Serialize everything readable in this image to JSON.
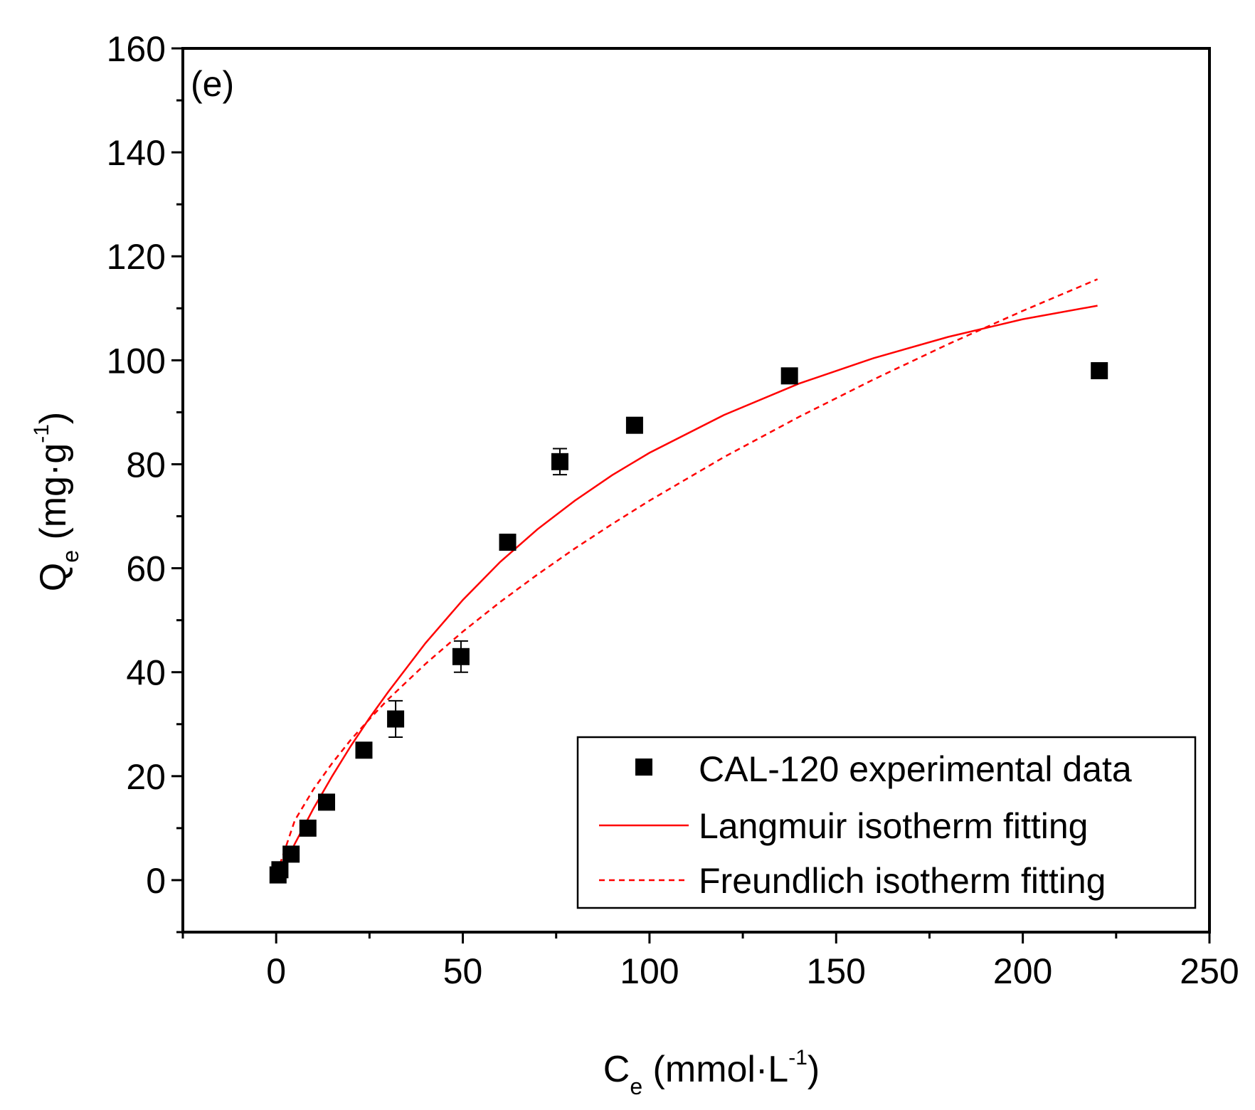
{
  "chart_data": {
    "type": "scatter",
    "panel_label": "(e)",
    "x_axis": {
      "label_main": "C",
      "label_sub": "e",
      "label_unit_pre": " (mmol·L",
      "label_sup": "-1",
      "label_unit_post": ")",
      "range": [
        -25,
        250
      ],
      "ticks": [
        0,
        50,
        100,
        150,
        200,
        250
      ],
      "tick_labels": [
        "0",
        "50",
        "100",
        "150",
        "200",
        "250"
      ],
      "minor_step": 25
    },
    "y_axis": {
      "label_main": "Q",
      "label_sub": "e",
      "label_unit_pre": " (mg·g",
      "label_sup": "-1",
      "label_unit_post": ")",
      "range": [
        -10,
        160
      ],
      "ticks": [
        0,
        20,
        40,
        60,
        80,
        100,
        120,
        140,
        160
      ],
      "tick_labels": [
        "0",
        "20",
        "40",
        "60",
        "80",
        "100",
        "120",
        "140",
        "160"
      ],
      "minor_step": 10
    },
    "grid": false,
    "legend_position": "bottom-right",
    "series": [
      {
        "name": "CAL-120 experimental data",
        "kind": "scatter",
        "marker": "square",
        "color": "#000000",
        "points": [
          {
            "x": 0.5,
            "y": 1.0,
            "err": 0
          },
          {
            "x": 1.0,
            "y": 2.0,
            "err": 0
          },
          {
            "x": 4.0,
            "y": 5.0,
            "err": 0
          },
          {
            "x": 8.5,
            "y": 10.0,
            "err": 0
          },
          {
            "x": 13.5,
            "y": 15.0,
            "err": 0
          },
          {
            "x": 23.5,
            "y": 25.0,
            "err": 0
          },
          {
            "x": 32.0,
            "y": 31.0,
            "err": 3.5
          },
          {
            "x": 49.5,
            "y": 43.0,
            "err": 3.0
          },
          {
            "x": 62.0,
            "y": 65.0,
            "err": 1.5
          },
          {
            "x": 76.0,
            "y": 80.5,
            "err": 2.5
          },
          {
            "x": 96.0,
            "y": 87.5,
            "err": 0.5
          },
          {
            "x": 137.5,
            "y": 97.0,
            "err": 0
          },
          {
            "x": 220.5,
            "y": 98.0,
            "err": 0
          }
        ]
      },
      {
        "name": "Langmuir isotherm fitting",
        "kind": "line",
        "dash": "solid",
        "color": "#ff0000",
        "x": [
          1,
          5,
          10,
          15,
          20,
          25,
          30,
          40,
          50,
          60,
          70,
          80,
          90,
          100,
          120,
          140,
          160,
          180,
          200,
          220
        ],
        "y": [
          1.0,
          7.0,
          13.8,
          20.0,
          25.8,
          31.2,
          36.2,
          45.6,
          53.9,
          61.2,
          67.5,
          73.0,
          77.9,
          82.2,
          89.5,
          95.5,
          100.4,
          104.5,
          107.9,
          110.5
        ]
      },
      {
        "name": "Freundlich isotherm fitting",
        "kind": "line",
        "dash": "dashed",
        "color": "#ff0000",
        "x": [
          1,
          5,
          10,
          15,
          20,
          25,
          30,
          40,
          50,
          60,
          70,
          80,
          90,
          100,
          120,
          140,
          160,
          180,
          200,
          220
        ],
        "y": [
          3.0,
          11.5,
          17.5,
          22.5,
          27.0,
          31.0,
          34.8,
          41.6,
          47.8,
          53.5,
          58.8,
          63.8,
          68.5,
          73.0,
          81.4,
          89.1,
          96.3,
          103.1,
          109.5,
          115.6
        ]
      }
    ]
  }
}
